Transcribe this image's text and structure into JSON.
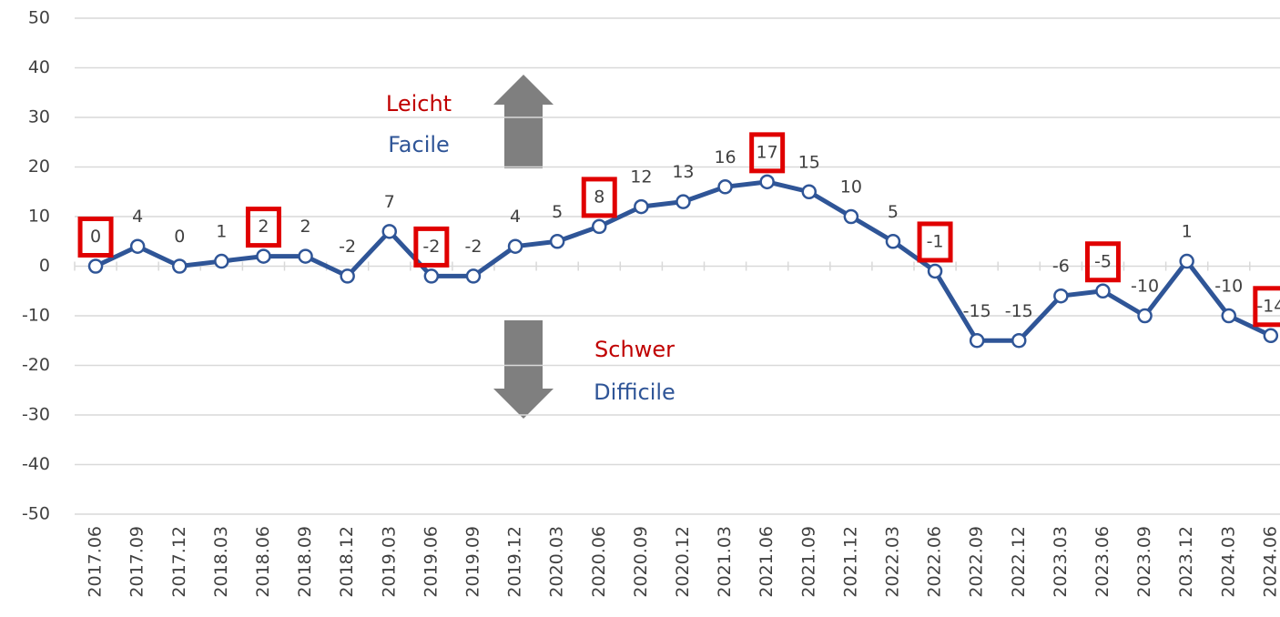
{
  "chart_data": {
    "type": "line",
    "categories": [
      "2017.06",
      "2017.09",
      "2017.12",
      "2018.03",
      "2018.06",
      "2018.09",
      "2018.12",
      "2019.03",
      "2019.06",
      "2019.09",
      "2019.12",
      "2020.03",
      "2020.06",
      "2020.09",
      "2020.12",
      "2021.03",
      "2021.06",
      "2021.09",
      "2021.12",
      "2022.03",
      "2022.06",
      "2022.09",
      "2022.12",
      "2023.03",
      "2023.06",
      "2023.09",
      "2023.12",
      "2024.03",
      "2024.06"
    ],
    "values": [
      0,
      4,
      0,
      1,
      2,
      2,
      -2,
      7,
      -2,
      -2,
      4,
      5,
      8,
      12,
      13,
      16,
      17,
      15,
      10,
      5,
      -1,
      -15,
      -15,
      -6,
      -5,
      -10,
      1,
      -10,
      -14
    ],
    "color": "#2f5597",
    "highlighted": [
      0,
      4,
      8,
      12,
      16,
      20,
      24,
      28
    ],
    "highlight_color": "#e00000",
    "ylim": [
      -50,
      50
    ],
    "yticks": [
      -50,
      -40,
      -30,
      -20,
      -10,
      0,
      10,
      20,
      30,
      40,
      50
    ],
    "grid": true,
    "annotations": [
      {
        "text": "Leicht",
        "color": "#c00000"
      },
      {
        "text": "Facile",
        "color": "#2f5597"
      },
      {
        "text": "Schwer",
        "color": "#c00000"
      },
      {
        "text": "Difficile",
        "color": "#2f5597"
      }
    ]
  }
}
